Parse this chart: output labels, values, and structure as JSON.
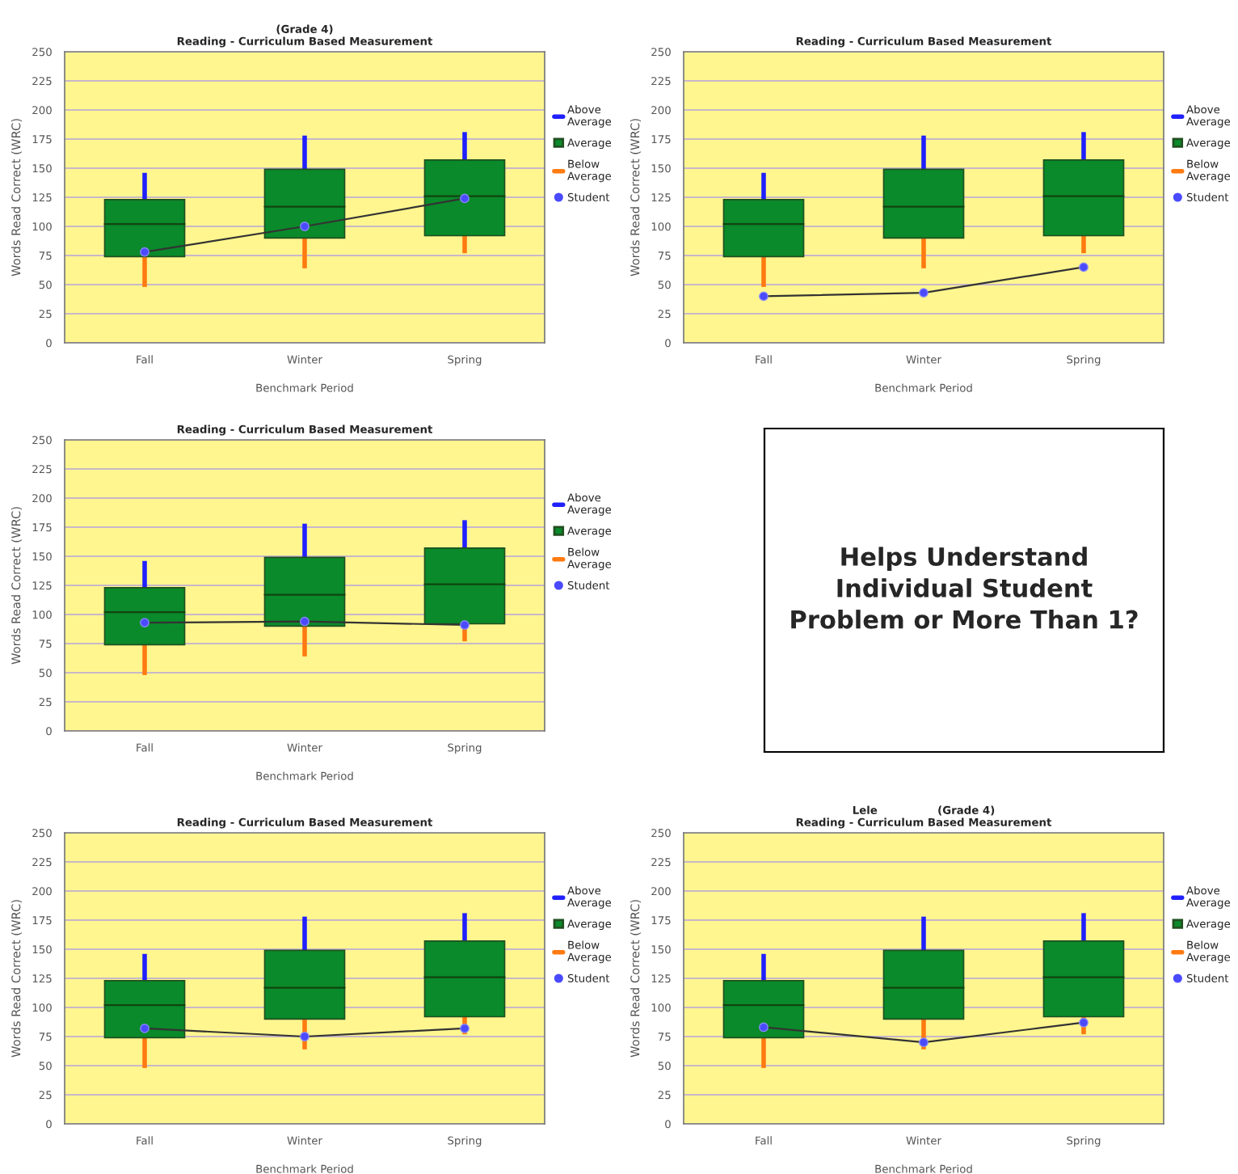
{
  "chart_data": [
    {
      "type": "box",
      "title": "(Grade 4)\nReading - Curriculum Based Measurement",
      "xlabel": "Benchmark Period",
      "ylabel": "Words Read Correct (WRC)",
      "categories": [
        "Fall",
        "Winter",
        "Spring"
      ],
      "ylim": [
        0,
        250
      ],
      "yticks": [
        0,
        25,
        50,
        75,
        100,
        125,
        150,
        175,
        200,
        225,
        250
      ],
      "grid": "y",
      "legend": "right",
      "annotations": [
        "Above Average",
        "Below Average"
      ],
      "series": [
        {
          "name": "Average",
          "type": "box",
          "color": "#0a8a2a",
          "boxes": [
            {
              "low": 48,
              "q1": 74,
              "median": 102,
              "q3": 123,
              "high": 146
            },
            {
              "low": 64,
              "q1": 90,
              "median": 117,
              "q3": 149,
              "high": 178
            },
            {
              "low": 77,
              "q1": 92,
              "median": 126,
              "q3": 157,
              "high": 181
            }
          ]
        },
        {
          "name": "Student",
          "type": "line",
          "color": "#4a4aff",
          "marker": "circle",
          "values": [
            78,
            100,
            124
          ]
        }
      ]
    },
    {
      "type": "box",
      "title": "Reading - Curriculum Based Measurement",
      "xlabel": "Benchmark Period",
      "ylabel": "Words Read Correct (WRC)",
      "categories": [
        "Fall",
        "Winter",
        "Spring"
      ],
      "ylim": [
        0,
        250
      ],
      "yticks": [
        0,
        25,
        50,
        75,
        100,
        125,
        150,
        175,
        200,
        225,
        250
      ],
      "grid": "y",
      "legend": "right",
      "annotations": [
        "Above Average",
        "Below Average"
      ],
      "series": [
        {
          "name": "Average",
          "type": "box",
          "color": "#0a8a2a",
          "boxes": [
            {
              "low": 48,
              "q1": 74,
              "median": 102,
              "q3": 123,
              "high": 146
            },
            {
              "low": 64,
              "q1": 90,
              "median": 117,
              "q3": 149,
              "high": 178
            },
            {
              "low": 77,
              "q1": 92,
              "median": 126,
              "q3": 157,
              "high": 181
            }
          ]
        },
        {
          "name": "Student",
          "type": "line",
          "color": "#4a4aff",
          "marker": "circle",
          "values": [
            40,
            43,
            65
          ]
        }
      ]
    },
    {
      "type": "box",
      "title": "Reading - Curriculum Based Measurement",
      "xlabel": "Benchmark Period",
      "ylabel": "Words Read Correct (WRC)",
      "categories": [
        "Fall",
        "Winter",
        "Spring"
      ],
      "ylim": [
        0,
        250
      ],
      "yticks": [
        0,
        25,
        50,
        75,
        100,
        125,
        150,
        175,
        200,
        225,
        250
      ],
      "grid": "y",
      "legend": "right",
      "annotations": [
        "Above Average",
        "Below Average"
      ],
      "series": [
        {
          "name": "Average",
          "type": "box",
          "color": "#0a8a2a",
          "boxes": [
            {
              "low": 48,
              "q1": 74,
              "median": 102,
              "q3": 123,
              "high": 146
            },
            {
              "low": 64,
              "q1": 90,
              "median": 117,
              "q3": 149,
              "high": 178
            },
            {
              "low": 77,
              "q1": 92,
              "median": 126,
              "q3": 157,
              "high": 181
            }
          ]
        },
        {
          "name": "Student",
          "type": "line",
          "color": "#4a4aff",
          "marker": "circle",
          "values": [
            93,
            94,
            91
          ]
        }
      ]
    },
    {
      "type": "other",
      "title": "Helps Understand Individual Student Problem or More Than 1?"
    },
    {
      "type": "box",
      "title": "Reading - Curriculum Based Measurement",
      "xlabel": "Benchmark Period",
      "ylabel": "Words Read Correct (WRC)",
      "categories": [
        "Fall",
        "Winter",
        "Spring"
      ],
      "ylim": [
        0,
        250
      ],
      "yticks": [
        0,
        25,
        50,
        75,
        100,
        125,
        150,
        175,
        200,
        225,
        250
      ],
      "grid": "y",
      "legend": "right",
      "annotations": [
        "Above Average",
        "Below Average"
      ],
      "series": [
        {
          "name": "Average",
          "type": "box",
          "color": "#0a8a2a",
          "boxes": [
            {
              "low": 48,
              "q1": 74,
              "median": 102,
              "q3": 123,
              "high": 146
            },
            {
              "low": 64,
              "q1": 90,
              "median": 117,
              "q3": 149,
              "high": 178
            },
            {
              "low": 77,
              "q1": 92,
              "median": 126,
              "q3": 157,
              "high": 181
            }
          ]
        },
        {
          "name": "Student",
          "type": "line",
          "color": "#4a4aff",
          "marker": "circle",
          "values": [
            82,
            75,
            82
          ]
        }
      ]
    },
    {
      "type": "box",
      "title": "Lele                (Grade 4)\nReading - Curriculum Based Measurement",
      "xlabel": "Benchmark Period",
      "ylabel": "Words Read Correct (WRC)",
      "categories": [
        "Fall",
        "Winter",
        "Spring"
      ],
      "ylim": [
        0,
        250
      ],
      "yticks": [
        0,
        25,
        50,
        75,
        100,
        125,
        150,
        175,
        200,
        225,
        250
      ],
      "grid": "y",
      "legend": "right",
      "annotations": [
        "Above Average",
        "Below Average"
      ],
      "series": [
        {
          "name": "Average",
          "type": "box",
          "color": "#0a8a2a",
          "boxes": [
            {
              "low": 48,
              "q1": 74,
              "median": 102,
              "q3": 123,
              "high": 146
            },
            {
              "low": 64,
              "q1": 90,
              "median": 117,
              "q3": 149,
              "high": 178
            },
            {
              "low": 77,
              "q1": 92,
              "median": 126,
              "q3": 157,
              "high": 181
            }
          ]
        },
        {
          "name": "Student",
          "type": "line",
          "color": "#4a4aff",
          "marker": "circle",
          "values": [
            83,
            70,
            87
          ]
        }
      ]
    }
  ]
}
